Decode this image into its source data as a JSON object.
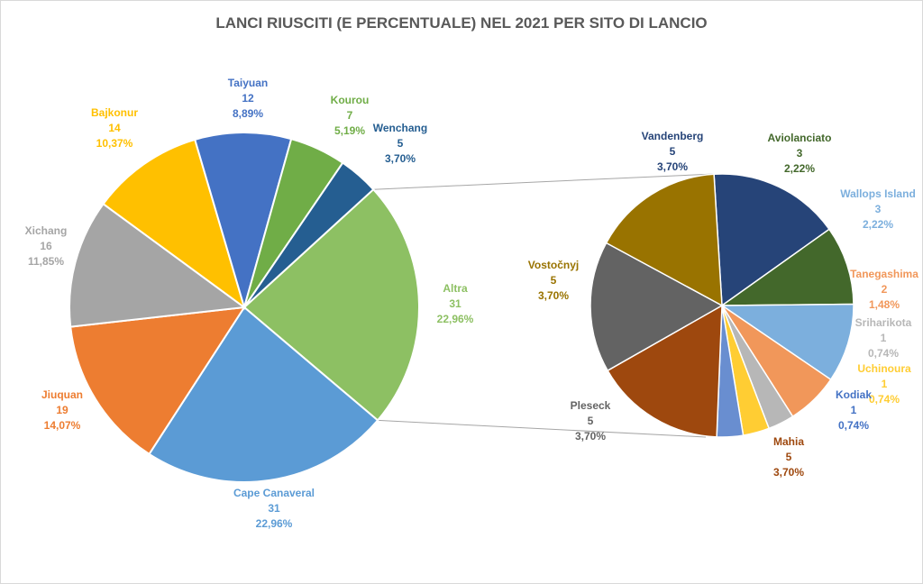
{
  "chart_data": {
    "type": "pie",
    "title": "LANCI RIUSCITI (E PERCENTUALE)  NEL 2021 PER SITO DI LANCIO",
    "main_pie": [
      {
        "name": "Altra",
        "value": 31,
        "percent": "22,96%",
        "color": "#8dc063",
        "label_color": "#8dc063"
      },
      {
        "name": "Cape Canaveral",
        "value": 31,
        "percent": "22,96%",
        "color": "#5b9bd5",
        "label_color": "#5b9bd5"
      },
      {
        "name": "Jiuquan",
        "value": 19,
        "percent": "14,07%",
        "color": "#ed7d31",
        "label_color": "#ed7d31"
      },
      {
        "name": "Xichang",
        "value": 16,
        "percent": "11,85%",
        "color": "#a5a5a5",
        "label_color": "#a5a5a5"
      },
      {
        "name": "Bajkonur",
        "value": 14,
        "percent": "10,37%",
        "color": "#ffc000",
        "label_color": "#ffc000"
      },
      {
        "name": "Taiyuan",
        "value": 12,
        "percent": "8,89%",
        "color": "#4472c4",
        "label_color": "#4472c4"
      },
      {
        "name": "Kourou",
        "value": 7,
        "percent": "5,19%",
        "color": "#70ad47",
        "label_color": "#70ad47"
      },
      {
        "name": "Wenchang",
        "value": 5,
        "percent": "3,70%",
        "color": "#255e91",
        "label_color": "#255e91"
      }
    ],
    "secondary_pie": [
      {
        "name": "Vandenberg",
        "value": 5,
        "percent": "3,70%",
        "color": "#264478",
        "label_color": "#264478"
      },
      {
        "name": "Aviolanciato",
        "value": 3,
        "percent": "2,22%",
        "color": "#43682b",
        "label_color": "#43682b"
      },
      {
        "name": "Wallops Island",
        "value": 3,
        "percent": "2,22%",
        "color": "#7cafdd",
        "label_color": "#7cafdd"
      },
      {
        "name": "Tanegashima",
        "value": 2,
        "percent": "1,48%",
        "color": "#f1975a",
        "label_color": "#f1975a"
      },
      {
        "name": "Sriharikota",
        "value": 1,
        "percent": "0,74%",
        "color": "#b7b7b7",
        "label_color": "#b7b7b7"
      },
      {
        "name": "Uchinoura",
        "value": 1,
        "percent": "0,74%",
        "color": "#ffcd33",
        "label_color": "#ffcd33"
      },
      {
        "name": "Kodiak",
        "value": 1,
        "percent": "0,74%",
        "color": "#698ed0",
        "label_color": "#4472c4"
      },
      {
        "name": "Mahia",
        "value": 5,
        "percent": "3,70%",
        "color": "#9e480e",
        "label_color": "#9e480e"
      },
      {
        "name": "Pleseck",
        "value": 5,
        "percent": "3,70%",
        "color": "#636363",
        "label_color": "#636363"
      },
      {
        "name": "Vostočnyj",
        "value": 5,
        "percent": "3,70%",
        "color": "#997300",
        "label_color": "#997300"
      }
    ],
    "title_color": "#595959"
  }
}
